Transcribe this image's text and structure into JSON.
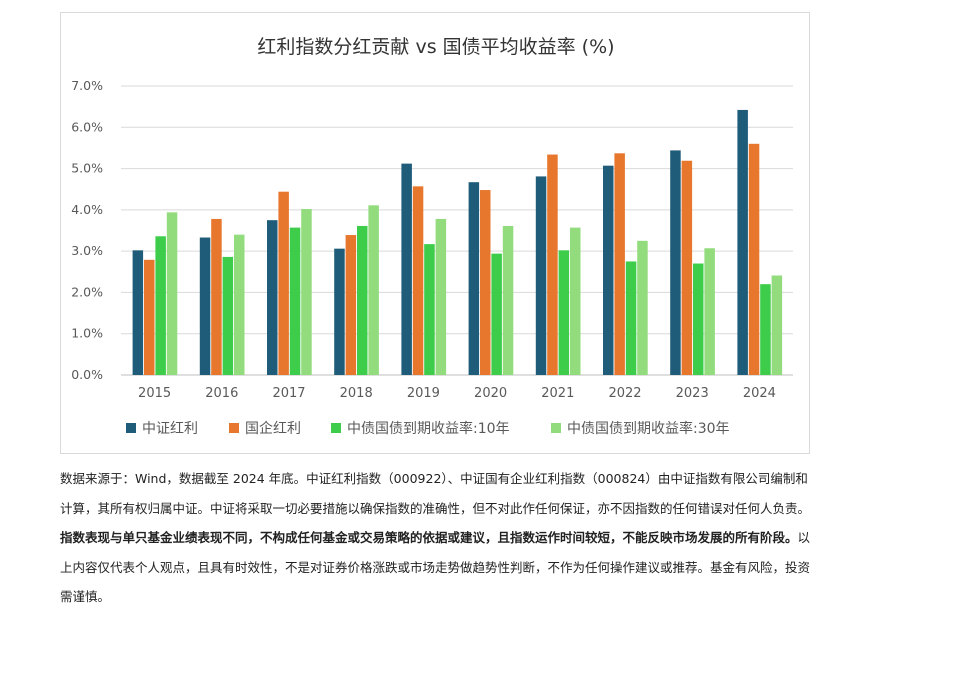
{
  "chart_data": {
    "type": "bar",
    "title": "红利指数分红贡献 vs 国债平均收益率 (%)",
    "categories": [
      "2015",
      "2016",
      "2017",
      "2018",
      "2019",
      "2020",
      "2021",
      "2022",
      "2023",
      "2024"
    ],
    "series": [
      {
        "name": "中证红利",
        "color": "#1f5c7a",
        "values": [
          3.02,
          3.33,
          3.75,
          3.06,
          5.12,
          4.67,
          4.81,
          5.07,
          5.44,
          6.42
        ]
      },
      {
        "name": "国企红利",
        "color": "#e8772e",
        "values": [
          2.79,
          3.78,
          4.44,
          3.39,
          4.57,
          4.48,
          5.34,
          5.37,
          5.19,
          5.6
        ]
      },
      {
        "name": "中债国债到期收益率:10年",
        "color": "#3dcd4a",
        "values": [
          3.36,
          2.86,
          3.57,
          3.61,
          3.17,
          2.94,
          3.02,
          2.75,
          2.7,
          2.2
        ]
      },
      {
        "name": "中债国债到期收益率:30年",
        "color": "#93dc7e",
        "values": [
          3.94,
          3.4,
          4.02,
          4.11,
          3.78,
          3.61,
          3.57,
          3.25,
          3.07,
          2.41
        ]
      }
    ],
    "y_ticks": [
      "0.0%",
      "1.0%",
      "2.0%",
      "3.0%",
      "4.0%",
      "5.0%",
      "6.0%",
      "7.0%"
    ],
    "ylim": [
      0,
      7
    ],
    "grid": true,
    "legend_position": "bottom"
  },
  "disclaimer": {
    "part1": "数据来源于：Wind，数据截至 2024 年底。中证红利指数（000922）、中证国有企业红利指数（000824）由中证指数有限公司编制和计算，其所有权归属中证。中证将采取一切必要措施以确保指数的准确性，但不对此作任何保证，亦不因指数的任何错误对任何人负责。",
    "bold": "指数表现与单只基金业绩表现不同，不构成任何基金或交易策略的依据或建议，且指数运作时间较短，不能反映市场发展的所有阶段。",
    "part2": "以上内容仅代表个人观点，且具有时效性，不是对证券价格涨跌或市场走势做趋势性判断，不作为任何操作建议或推荐。基金有风险，投资需谨慎。"
  }
}
